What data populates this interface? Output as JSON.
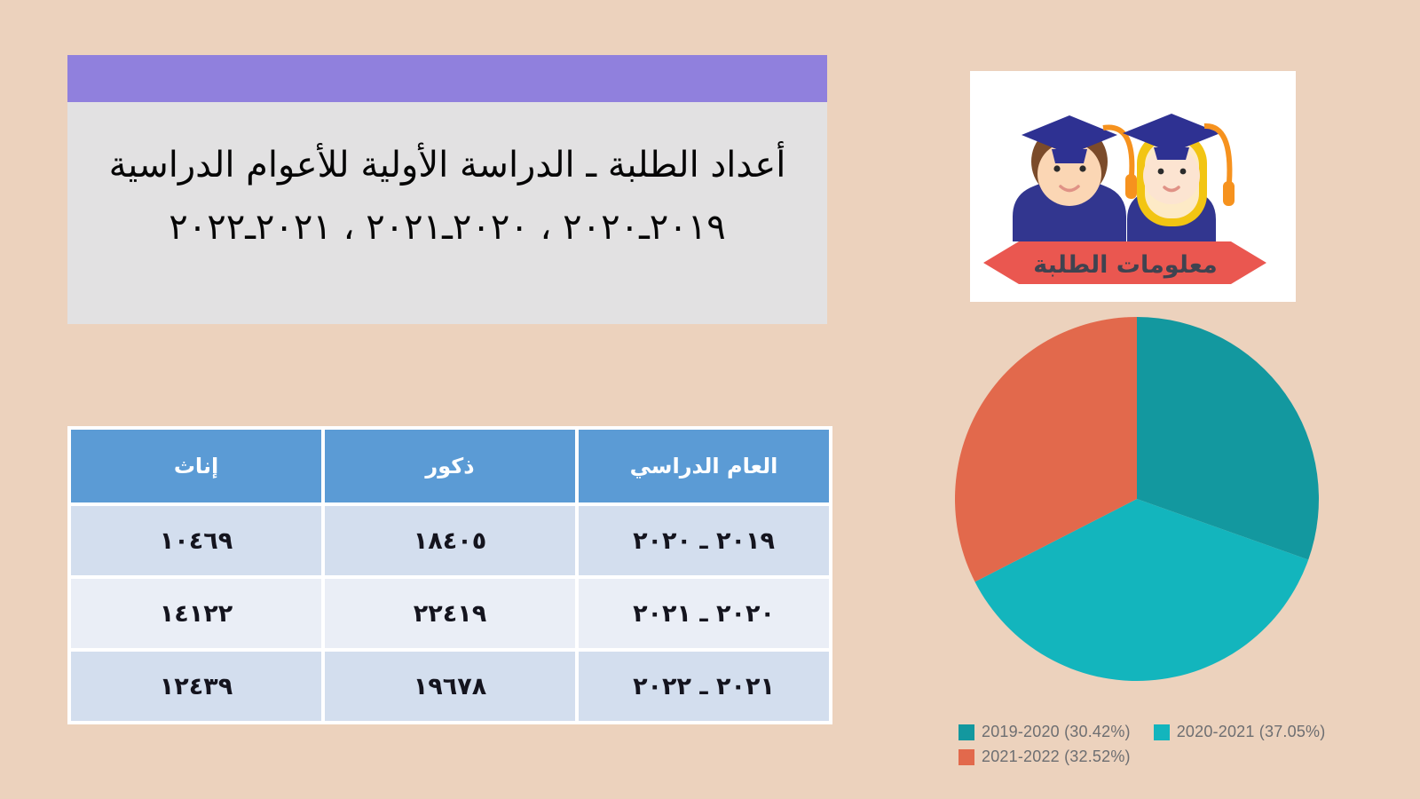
{
  "slide": {
    "background": "#ecd2bd",
    "accent_bar_color": "#9080dd",
    "title_box_color": "#e2e1e2"
  },
  "title": {
    "line1": "أعداد الطلبة ـ الدراسة الأولية للأعوام الدراسية",
    "line2": "٢٠١٩ـ٢٠٢٠ ، ٢٠٢٠ـ٢٠٢١ ، ٢٠٢١ـ٢٠٢٢"
  },
  "table": {
    "header_bg": "#5b9bd5",
    "row_colors": [
      "#d3deee",
      "#eaeef6"
    ],
    "headers": [
      "العام الدراسي",
      "ذكور",
      "إناث"
    ],
    "rows": [
      {
        "year": "٢٠١٩ ـ ٢٠٢٠",
        "males": "١٨٤٠٥",
        "females": "١٠٤٦٩",
        "year_latin": "2019-2020",
        "males_value": 18405,
        "females_value": 10469
      },
      {
        "year": "٢٠٢٠ ـ ٢٠٢١",
        "males": "٢٢٤١٩",
        "females": "١٤١٢٢",
        "year_latin": "2020-2021",
        "males_value": 22419,
        "females_value": 14122
      },
      {
        "year": "٢٠٢١ ـ ٢٠٢٢",
        "males": "١٩٦٧٨",
        "females": "١٢٤٣٩",
        "year_latin": "2021-2022",
        "males_value": 19678,
        "females_value": 12439
      }
    ]
  },
  "clipart": {
    "banner_text": "معلومات الطلبة",
    "banner_color": "#ea5750",
    "gown_color": "#32368f",
    "tassel_color": "#f6921e"
  },
  "chart_data": {
    "type": "pie",
    "labels": [
      "2019-2020",
      "2020-2021",
      "2021-2022"
    ],
    "values": [
      30.42,
      37.05,
      32.52
    ],
    "unit": "%",
    "colors": [
      "#13989f",
      "#13b5bd",
      "#e2694c"
    ],
    "legend": [
      "2019-2020 (30.42%)",
      "2020-2021 (37.05%)",
      "2021-2022 (32.52%)"
    ],
    "legend_position": "bottom",
    "start_angle_deg": 0,
    "direction": "clockwise",
    "gridlines": false
  }
}
